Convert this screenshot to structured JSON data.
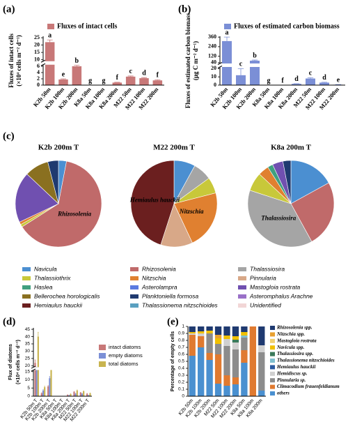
{
  "chart_data": [
    {
      "panel": "(a)",
      "type": "bar",
      "legend": "top",
      "ylabel": [
        "Fluxes of intact cells",
        "(×10⁴ cells m⁻² d⁻¹)"
      ],
      "categories": [
        "K2b 50m",
        "K2b 100m",
        "K2b 200m",
        "K8a 50m",
        "K8a 100m",
        "K8a 200m",
        "M22 50m",
        "M22 100m",
        "M22 200m"
      ],
      "series": [
        {
          "name": "Fluxes of intact cells",
          "color": "#c87878",
          "values": [
            22,
            1.8,
            6,
            0,
            0,
            0.8,
            2.7,
            2.2,
            1.5
          ],
          "errors": [
            1.5,
            0.2,
            0.3,
            0,
            0,
            0.1,
            0.2,
            0.2,
            0.2
          ]
        }
      ],
      "letters": [
        "a",
        "e",
        "b",
        "g",
        "g",
        "f",
        "c",
        "d",
        "f"
      ],
      "ylim": [
        0,
        26
      ],
      "ybreak": [
        6.5,
        9
      ],
      "yticks": [
        0,
        2,
        4,
        6,
        10,
        15,
        20,
        25
      ]
    },
    {
      "panel": "(b)",
      "type": "bar",
      "legend": "top",
      "ylabel": [
        "Fluxes of estimated carbon biomass",
        "(μg C m⁻² d⁻¹)"
      ],
      "categories": [
        "K2b 50m",
        "K2b 100m",
        "K2b 200m",
        "K8a 50m",
        "K8a 100m",
        "K8a 200m",
        "M22 50m",
        "M22 100m",
        "M22 200m"
      ],
      "series": [
        {
          "name": "Fluxes of estimated carbon biomass",
          "color": "#7b8fd6",
          "values": [
            310,
            12,
            65,
            0,
            0,
            1.5,
            8,
            3,
            0.5
          ],
          "errors": [
            50,
            8,
            8,
            0,
            0,
            0.3,
            1,
            0.5,
            0.2
          ]
        }
      ],
      "letters": [
        "a",
        "c",
        "b",
        "g",
        "f",
        "d",
        "c",
        "d",
        "e"
      ],
      "ylim": [
        0,
        370
      ],
      "ybreak": [
        22,
        30
      ],
      "yticks": [
        0,
        10,
        20,
        40,
        120,
        240,
        360
      ]
    },
    {
      "panel": "(c)",
      "type": "pie",
      "legend": [
        {
          "name": "Navicula",
          "color": "#4b8fd1"
        },
        {
          "name": "Rhizosolenia",
          "color": "#c06a6a"
        },
        {
          "name": "Thalassiosira",
          "color": "#a5a5a5"
        },
        {
          "name": "Thalassiothrix",
          "color": "#c8c83a"
        },
        {
          "name": "Nitzschia",
          "color": "#e08030"
        },
        {
          "name": "Pinnularia",
          "color": "#d8a888"
        },
        {
          "name": "Haslea",
          "color": "#40a080"
        },
        {
          "name": "Asterolampra",
          "color": "#5a7ae0"
        },
        {
          "name": "Mastogloia rostrata",
          "color": "#7050b0"
        },
        {
          "name": "Bellerochea horologicalis",
          "color": "#8a7020"
        },
        {
          "name": "Planktoniella formosa",
          "color": "#1f3a70"
        },
        {
          "name": "Asteromphalus Arachne",
          "color": "#9a70c8"
        },
        {
          "name": "Hemiaulus hauckii",
          "color": "#6b1f1f"
        },
        {
          "name": "Thalassionema nitzschioides",
          "color": "#5aa0c0"
        },
        {
          "name": "Unidentified",
          "color": "#f2d6d6"
        }
      ],
      "pies": [
        {
          "title": "K2b 200m T",
          "values": [
            3,
            63,
            0,
            1,
            1,
            0,
            0,
            0,
            19,
            9,
            4,
            0,
            0,
            0,
            0
          ],
          "annotations": [
            "Rhizosolenia"
          ]
        },
        {
          "title": "M22 200m T",
          "values": [
            8,
            0,
            7,
            6,
            22,
            12,
            0,
            0,
            0,
            0,
            0,
            0,
            45,
            0,
            0
          ],
          "annotations": [
            "Hemiaulus hauckii",
            "Nitzschia"
          ]
        },
        {
          "title": "K8a 200m T",
          "values": [
            17,
            25,
            38,
            7,
            4,
            0,
            2,
            0,
            4,
            0,
            3,
            0,
            0,
            0,
            0
          ],
          "annotations": [
            "Thalassiosira"
          ]
        }
      ]
    },
    {
      "panel": "(d)",
      "type": "bar",
      "legend": "right",
      "ylabel": [
        "Flux of diatoms",
        "(×10⁴ cells m⁻² d⁻¹)"
      ],
      "categories": [
        "K2b 50m T",
        "K2b 100m T",
        "K2b 200m T",
        "K8a 50m T",
        "K8a 100m T",
        "K8a 200m T",
        "M22 50m T",
        "M22 100m T",
        "M22 200m T"
      ],
      "series": [
        {
          "name": "intact diatoms",
          "color": "#c87878",
          "values": [
            22,
            1.8,
            6,
            0,
            0,
            0.8,
            2.7,
            2.2,
            1.5
          ],
          "errors": [
            2,
            0.3,
            0.5,
            0,
            0,
            0.1,
            0.2,
            0.2,
            0.2
          ]
        },
        {
          "name": "empty diatoms",
          "color": "#7b8fd6",
          "values": [
            17,
            3.5,
            11,
            0,
            0,
            0.5,
            1.5,
            1.5,
            0.5
          ],
          "errors": [
            2,
            0.5,
            1,
            0,
            0,
            0.1,
            0.2,
            0.2,
            0.1
          ]
        },
        {
          "name": "total diatoms",
          "color": "#c8b450",
          "values": [
            40,
            5.5,
            17,
            0,
            0,
            1.3,
            3.5,
            3,
            1.8
          ],
          "errors": [
            3,
            0.6,
            1,
            0,
            0,
            0.2,
            0.3,
            0.3,
            0.2
          ]
        }
      ],
      "ylim": [
        0,
        46
      ],
      "ybreak": [
        16,
        19
      ],
      "yticks": [
        0,
        5,
        10,
        15,
        20,
        25,
        30,
        35,
        40,
        45
      ]
    },
    {
      "panel": "(e)",
      "type": "stacked_bar",
      "ylabel": [
        "Percentage of empty cells"
      ],
      "categories": [
        "K2b 50m",
        "K2b 100m",
        "K2b 200m",
        "M22 50m",
        "M22 100m",
        "M22 200m",
        "K8a 50m",
        "K8a 100m",
        "K8a 200m"
      ],
      "series": [
        {
          "name": "Rhizosolenia spp.",
          "color": "#1f3a70",
          "values": [
            0.08,
            0.07,
            0.06,
            0.12,
            0.13,
            0.14,
            0.08,
            0,
            0.27
          ]
        },
        {
          "name": "Nitzschia spp.",
          "color": "#e8a030",
          "values": [
            0,
            0,
            0,
            0.05,
            0,
            0,
            0,
            0,
            0
          ]
        },
        {
          "name": "Mastogloia rostrata",
          "color": "#f0d070",
          "values": [
            0,
            0,
            0,
            0,
            0,
            0,
            0,
            0,
            0
          ]
        },
        {
          "name": "Navicula spp.",
          "color": "#f0c000",
          "values": [
            0.02,
            0.03,
            0.04,
            0.08,
            0.05,
            0.05,
            0.05,
            0,
            0
          ]
        },
        {
          "name": "Thalassiosira spp.",
          "color": "#3a7a5a",
          "values": [
            0,
            0,
            0,
            0,
            0,
            0.04,
            0,
            0,
            0
          ]
        },
        {
          "name": "Thalassionema nitzschioides",
          "color": "#80c0d0",
          "values": [
            0,
            0,
            0,
            0,
            0,
            0,
            0.03,
            0,
            0
          ]
        },
        {
          "name": "Hemiaulus hauckii",
          "color": "#2a5aa0",
          "values": [
            0,
            0,
            0,
            0,
            0,
            0,
            0,
            0,
            0
          ]
        },
        {
          "name": "Hemidiscus sp.",
          "color": "#d0d0d0",
          "values": [
            0.02,
            0.04,
            0,
            0,
            0.1,
            0.1,
            0,
            0,
            0.1
          ]
        },
        {
          "name": "Pinnularia sp.",
          "color": "#8c8c8c",
          "values": [
            0,
            0,
            0.28,
            0.15,
            0.42,
            0.4,
            0.18,
            0,
            0.55
          ]
        },
        {
          "name": "Climacodium frauenfeldianum",
          "color": "#e07a30",
          "values": [
            0.3,
            0.16,
            0.1,
            0.42,
            0.15,
            0.1,
            0.18,
            1,
            0
          ]
        },
        {
          "name": "others",
          "color": "#4a90d0",
          "values": [
            0.58,
            0.7,
            0.52,
            0.18,
            0.15,
            0.17,
            0.48,
            0,
            0.08
          ]
        }
      ],
      "ylim": [
        0,
        1
      ],
      "yticks": [
        0,
        0.1,
        0.2,
        0.3,
        0.4,
        0.5,
        0.6,
        0.7,
        0.8,
        0.9,
        1
      ]
    }
  ]
}
